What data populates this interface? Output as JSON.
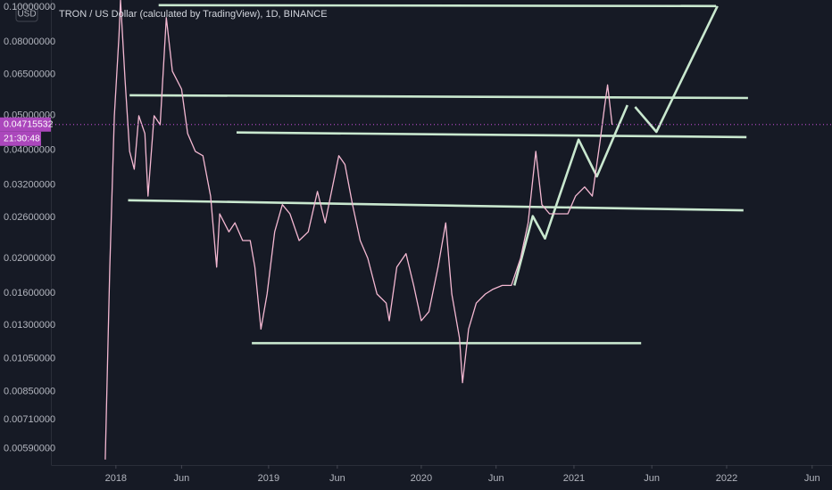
{
  "chart_data": {
    "type": "line",
    "title": "TRON / US Dollar (calculated by TradingView), 1D, BINANCE",
    "currency": "USD",
    "log_scale": true,
    "grid": false,
    "color": "#f4b8d2",
    "x": [
      2017.93,
      2017.96,
      2017.99,
      2018.02,
      2018.03,
      2018.06,
      2018.09,
      2018.12,
      2018.15,
      2018.19,
      2018.21,
      2018.25,
      2018.29,
      2018.33,
      2018.37,
      2018.43,
      2018.47,
      2018.52,
      2018.57,
      2018.62,
      2018.66,
      2018.68,
      2018.74,
      2018.78,
      2018.83,
      2018.88,
      2018.91,
      2018.95,
      2018.99,
      2019.04,
      2019.09,
      2019.14,
      2019.2,
      2019.26,
      2019.32,
      2019.37,
      2019.43,
      2019.46,
      2019.5,
      2019.55,
      2019.6,
      2019.65,
      2019.71,
      2019.77,
      2019.79,
      2019.84,
      2019.9,
      2019.95,
      2020.0,
      2020.05,
      2020.11,
      2020.16,
      2020.2,
      2020.25,
      2020.27,
      2020.31,
      2020.36,
      2020.42,
      2020.47,
      2020.53,
      2020.59,
      2020.65,
      2020.7,
      2020.75,
      2020.79,
      2020.84,
      2020.9,
      2020.96,
      2021.01,
      2021.07,
      2021.12,
      2021.17,
      2021.2,
      2021.22,
      2021.23,
      2021.25
    ],
    "values": [
      0.0055,
      0.0189,
      0.0499,
      0.0834,
      0.1048,
      0.0627,
      0.0397,
      0.0354,
      0.0499,
      0.0445,
      0.0298,
      0.0499,
      0.0471,
      0.0936,
      0.0664,
      0.0592,
      0.0445,
      0.0397,
      0.0386,
      0.0298,
      0.0189,
      0.0266,
      0.0237,
      0.0251,
      0.0224,
      0.0224,
      0.0189,
      0.0127,
      0.0159,
      0.0237,
      0.0282,
      0.0266,
      0.0224,
      0.0237,
      0.0307,
      0.0251,
      0.0334,
      0.0386,
      0.0365,
      0.0282,
      0.0224,
      0.02,
      0.0159,
      0.015,
      0.0134,
      0.0189,
      0.0206,
      0.0168,
      0.0134,
      0.0142,
      0.0189,
      0.0251,
      0.0159,
      0.012,
      0.009,
      0.0127,
      0.015,
      0.0159,
      0.0164,
      0.0168,
      0.0168,
      0.02,
      0.0251,
      0.0397,
      0.0282,
      0.0266,
      0.0266,
      0.0266,
      0.0298,
      0.0316,
      0.0298,
      0.042,
      0.0528,
      0.0608,
      0.0559,
      0.0471
    ],
    "drawing_color": "#c9e8cf",
    "drawings": [
      {
        "x": [
          2018.28,
          2021.93
        ],
        "y": [
          0.1014,
          0.1008
        ]
      },
      {
        "x": [
          2018.09,
          2022.14
        ],
        "y": [
          0.0569,
          0.0559
        ]
      },
      {
        "x": [
          2018.79,
          2022.13
        ],
        "y": [
          0.0448,
          0.0435
        ]
      },
      {
        "x": [
          2018.08,
          2022.11
        ],
        "y": [
          0.029,
          0.0272
        ]
      },
      {
        "x": [
          2018.89,
          2021.44
        ],
        "y": [
          0.0116,
          0.0116
        ]
      },
      {
        "x": [
          2020.61,
          2020.73,
          2020.81,
          2021.03,
          2021.15,
          2021.35
        ],
        "y": [
          0.0168,
          0.0262,
          0.0227,
          0.0428,
          0.0338,
          0.0534
        ]
      },
      {
        "x": [
          2021.4,
          2021.54,
          2021.94
        ],
        "y": [
          0.0528,
          0.045,
          0.1008
        ]
      }
    ],
    "last_price": 0.04715532,
    "last_price_color": "#ab47bc",
    "countdown": "21:30:48",
    "xlim": [
      2017.58,
      2022.69
    ],
    "ylim": [
      0.00537,
      0.1048
    ],
    "xticks": [
      2018,
      {
        "value": 2018.43,
        "label": "Jun"
      },
      2019,
      {
        "value": 2019.45,
        "label": "Jun"
      },
      2020,
      {
        "value": 2020.49,
        "label": "Jun"
      },
      2021,
      {
        "value": 2021.51,
        "label": "Jun"
      },
      2022,
      {
        "value": 2022.56,
        "label": "Jun"
      }
    ],
    "yticks": [
      {
        "value": 0.1,
        "label": "0.10000000"
      },
      {
        "value": 0.08,
        "label": "0.08000000"
      },
      {
        "value": 0.065,
        "label": "0.06500000"
      },
      {
        "value": 0.05,
        "label": "0.05000000"
      },
      {
        "value": 0.04,
        "label": "0.04000000"
      },
      {
        "value": 0.032,
        "label": "0.03200000"
      },
      {
        "value": 0.026,
        "label": "0.02600000"
      },
      {
        "value": 0.02,
        "label": "0.02000000"
      },
      {
        "value": 0.016,
        "label": "0.01600000"
      },
      {
        "value": 0.013,
        "label": "0.01300000"
      },
      {
        "value": 0.0105,
        "label": "0.01050000"
      },
      {
        "value": 0.0085,
        "label": "0.00850000"
      },
      {
        "value": 0.0071,
        "label": "0.00710000"
      },
      {
        "value": 0.0059,
        "label": "0.00590000"
      }
    ]
  }
}
